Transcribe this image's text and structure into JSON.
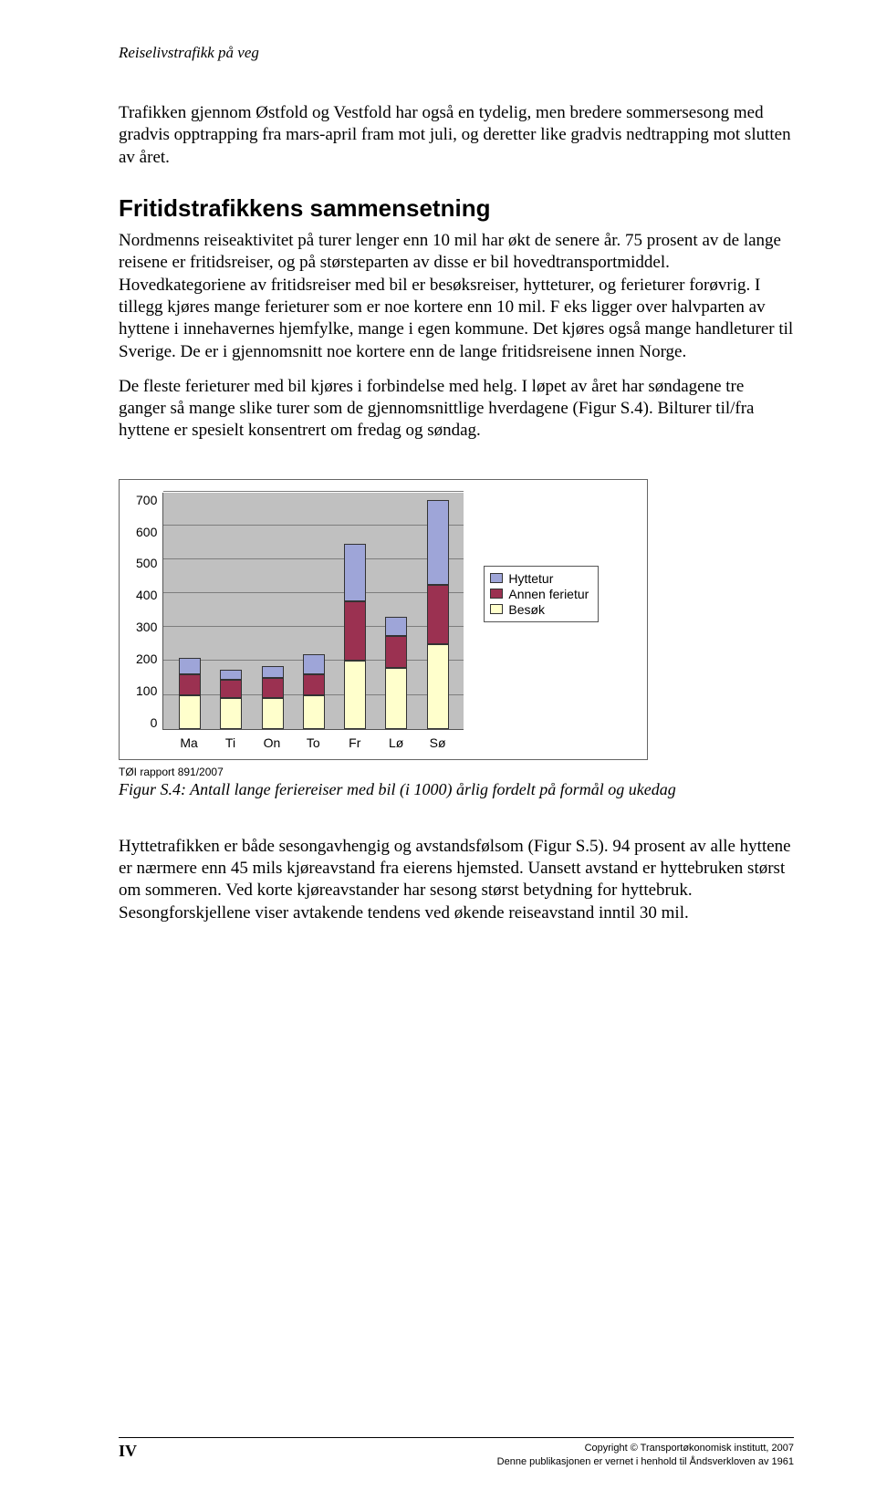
{
  "running_head": "Reiselivstrafikk på veg",
  "para1": "Trafikken gjennom Østfold og Vestfold har også en tydelig, men bredere sommersesong med gradvis opptrapping fra mars-april fram mot juli, og deretter like gradvis nedtrapping mot slutten av året.",
  "section_title": "Fritidstrafikkens sammensetning",
  "para2": "Nordmenns reiseaktivitet på turer lenger enn 10 mil har økt de senere år. 75 prosent av de lange reisene er fritidsreiser, og på størsteparten av disse er bil hovedtransportmiddel. Hovedkategoriene av fritidsreiser med bil er besøksreiser, hytteturer, og ferieturer forøvrig. I tillegg kjøres mange ferieturer som er noe kortere enn 10 mil. F eks ligger over halvparten av hyttene i innehavernes hjemfylke, mange i egen kommune. Det kjøres også mange handleturer til Sverige. De er i gjennomsnitt noe kortere enn de lange fritidsreisene innen Norge.",
  "para3": "De fleste ferieturer med bil kjøres i forbindelse med helg. I løpet av året har søndagene tre ganger så mange slike turer som de gjennomsnittlige hverdagene (Figur S.4). Bilturer til/fra hyttene er spesielt konsentrert om fredag og søndag.",
  "chart": {
    "y_ticks": [
      "700",
      "600",
      "500",
      "400",
      "300",
      "200",
      "100",
      "0"
    ],
    "y_max": 700,
    "categories": [
      "Ma",
      "Ti",
      "On",
      "To",
      "Fr",
      "Lø",
      "Sø"
    ],
    "series": [
      {
        "key": "besok",
        "label": "Besøk",
        "color": "#ffffcc"
      },
      {
        "key": "annen",
        "label": "Annen ferietur",
        "color": "#9b3151"
      },
      {
        "key": "hytte",
        "label": "Hyttetur",
        "color": "#9ea5d8"
      }
    ],
    "legend_order": [
      "hytte",
      "annen",
      "besok"
    ],
    "data": {
      "besok": [
        100,
        90,
        90,
        100,
        200,
        180,
        250
      ],
      "annen": [
        60,
        55,
        60,
        60,
        175,
        95,
        175
      ],
      "hytte": [
        50,
        30,
        35,
        60,
        170,
        55,
        250
      ]
    },
    "grid_color": "#7d7d7d",
    "plot_bg": "#c0c0c0"
  },
  "caption_note": "TØI rapport 891/2007",
  "fig_caption": "Figur S.4: Antall lange feriereiser med bil (i 1000) årlig fordelt på formål og ukedag",
  "para4": "Hyttetrafikken er både sesongavhengig og avstandsfølsom (Figur S.5). 94 prosent av alle hyttene er nærmere enn 45 mils kjøreavstand fra eierens hjemsted. Uansett avstand er hyttebruken størst om sommeren. Ved korte kjøreavstander har sesong størst betydning for hyttebruk. Sesongforskjellene viser avtakende tendens ved økende reiseavstand inntil 30 mil.",
  "footer": {
    "page_num": "IV",
    "copyright": "Copyright © Transportøkonomisk institutt, 2007",
    "rights": "Denne publikasjonen er vernet i henhold til Åndsverkloven av 1961"
  }
}
